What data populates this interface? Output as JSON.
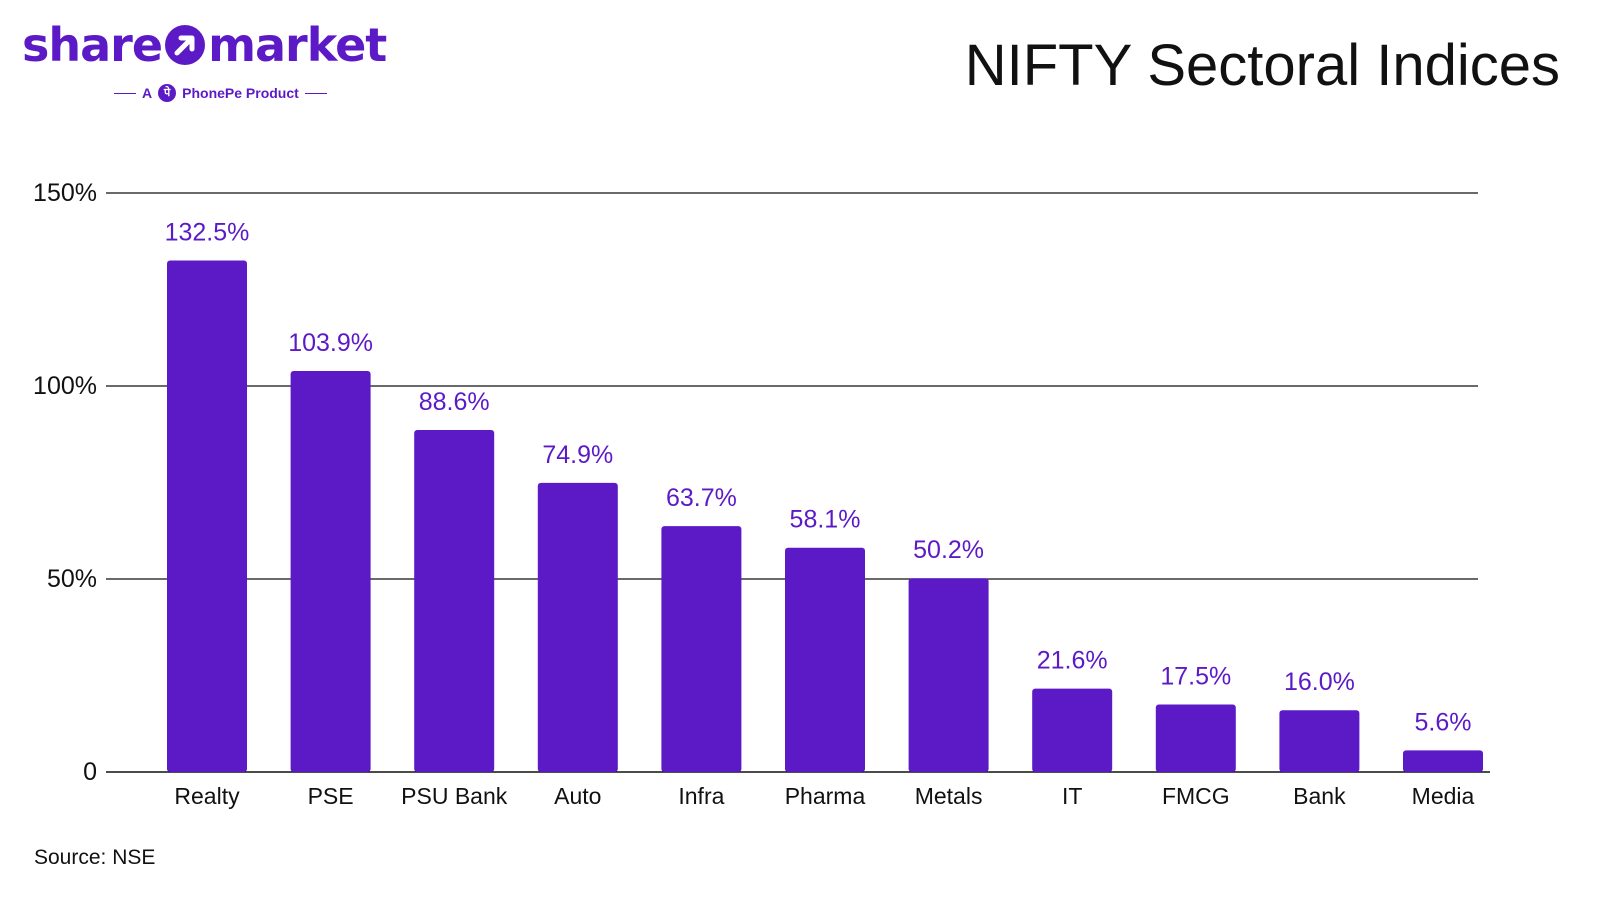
{
  "brand": {
    "word_left": "share",
    "word_right": "market",
    "tagline_prefix": "A",
    "tagline_product": "PhonePe Product",
    "logo_icon": "arrow-up-right-icon",
    "phonepe_icon": "phonepe-icon"
  },
  "colors": {
    "bar": "#5c1ac7",
    "data_label": "#5c1ac7",
    "grid": "#111111",
    "text": "#111111"
  },
  "source": "Source: NSE",
  "chart_data": {
    "type": "bar",
    "title": "NIFTY Sectoral Indices",
    "xlabel": "",
    "ylabel": "",
    "categories": [
      "Realty",
      "PSE",
      "PSU Bank",
      "Auto",
      "Infra",
      "Pharma",
      "Metals",
      "IT",
      "FMCG",
      "Bank",
      "Media"
    ],
    "values": [
      132.5,
      103.9,
      88.6,
      74.9,
      63.7,
      58.1,
      50.2,
      21.6,
      17.5,
      16.0,
      5.6
    ],
    "data_labels": [
      "132.5%",
      "103.9%",
      "88.6%",
      "74.9%",
      "63.7%",
      "58.1%",
      "50.2%",
      "21.6%",
      "17.5%",
      "16.0%",
      "5.6%"
    ],
    "ylim": [
      0,
      150
    ],
    "yticks": [
      0,
      50,
      100,
      150
    ],
    "ytick_labels": [
      "0",
      "50%",
      "100%",
      "150%"
    ],
    "grid": true,
    "legend": "none"
  }
}
